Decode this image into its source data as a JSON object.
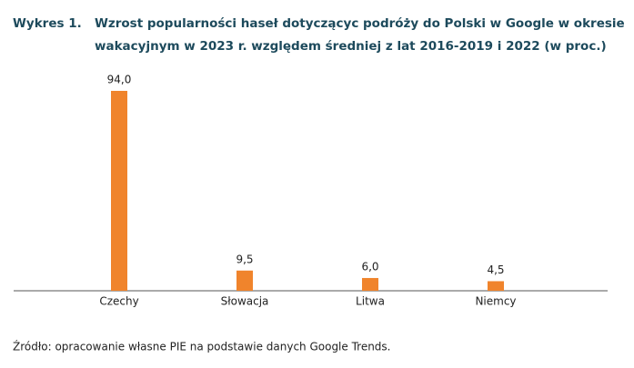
{
  "chart_data": {
    "type": "bar",
    "figure_label": "Wykres 1.",
    "title": [
      "Wzrost popularności haseł dotyczącyc podróży do Polski w Google w okresie",
      "wakacyjnym w 2023 r. względem średniej z lat 2016-2019 i 2022 (w proc.)"
    ],
    "categories": [
      "Czechy",
      "Słowacja",
      "Litwa",
      "Niemcy"
    ],
    "values": [
      94.0,
      9.5,
      6.0,
      4.5
    ],
    "value_labels": [
      "94,0",
      "9,5",
      "6,0",
      "4,5"
    ],
    "color": "#f0842c",
    "source": "Źródło: opracowanie własne PIE na podstawie danych Google Trends."
  }
}
